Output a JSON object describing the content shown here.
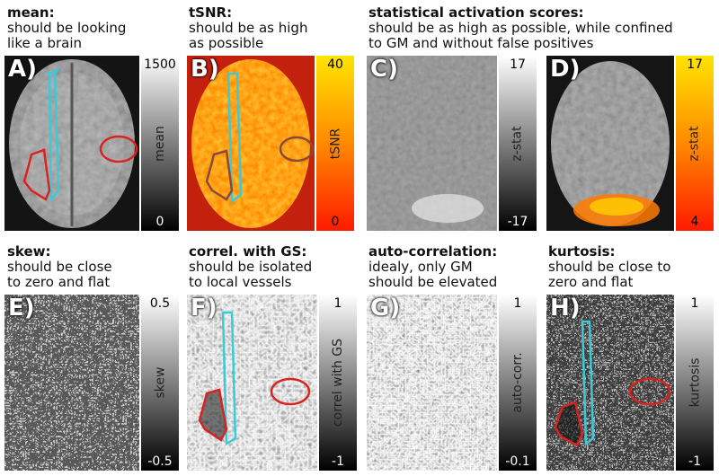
{
  "panels": [
    {
      "id": "A",
      "letter": "A)",
      "title": "mean:",
      "subtitle": [
        "should be looking",
        "like a brain"
      ],
      "cbar_label": "mean",
      "cbar_max": "1500",
      "cbar_min": "0",
      "cmap": "gray"
    },
    {
      "id": "B",
      "letter": "B)",
      "title": "tSNR:",
      "subtitle": [
        "should be as high",
        "as possible"
      ],
      "cbar_label": "tSNR",
      "cbar_max": "40",
      "cbar_min": "0",
      "cmap": "hot"
    },
    {
      "id": "C",
      "letter": "C)",
      "title": "statistical activation scores:",
      "subtitle": [
        "should be as high as possible, while confined",
        "to GM and without false positives"
      ],
      "cbar_label": "z-stat",
      "cbar_max": "17",
      "cbar_min": "-17",
      "cmap": "gray"
    },
    {
      "id": "D",
      "letter": "D)",
      "title": "",
      "subtitle": [],
      "cbar_label": "z-stat",
      "cbar_max": "17",
      "cbar_min": "4",
      "cmap": "hot"
    },
    {
      "id": "E",
      "letter": "E)",
      "title": "skew:",
      "subtitle": [
        "should be close",
        "to zero and flat"
      ],
      "cbar_label": "skew",
      "cbar_max": "0.5",
      "cbar_min": "-0.5",
      "cmap": "gray"
    },
    {
      "id": "F",
      "letter": "F)",
      "title": "correl. with GS:",
      "subtitle": [
        "should be isolated",
        "to local vessels"
      ],
      "cbar_label": "correl with GS",
      "cbar_max": "1",
      "cbar_min": "-1",
      "cmap": "gray"
    },
    {
      "id": "G",
      "letter": "G)",
      "title": "auto-correlation:",
      "subtitle": [
        "idealy, only GM",
        "should be elevated"
      ],
      "cbar_label": "auto-corr.",
      "cbar_max": "1",
      "cbar_min": "-0.1",
      "cmap": "gray"
    },
    {
      "id": "H",
      "letter": "H)",
      "title": "kurtosis:",
      "subtitle": [
        "should be close to",
        "zero and flat"
      ],
      "cbar_label": "kurtosis",
      "cbar_max": "1",
      "cbar_min": "-1",
      "cmap": "gray"
    }
  ],
  "colors": {
    "roi_vessel": "#3cc9d8",
    "roi_red": "#d9231f",
    "hot_top": "#ffe400",
    "hot_mid": "#ff7a00",
    "hot_bottom": "#ff1a00"
  }
}
